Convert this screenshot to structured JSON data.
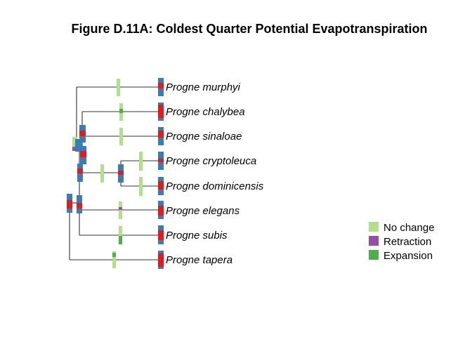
{
  "title": "Figure D.11A: Coldest Quarter Potential Evapotranspiration",
  "colors": {
    "no_change": "#b2df8a",
    "retraction": "#984ea3",
    "expansion": "#4daf4a",
    "node_blue": "#377eb8",
    "node_red": "#e41a1c"
  },
  "taxa": [
    "Progne murphyi",
    "Progne chalybea",
    "Progne sinaloae",
    "Progne cryptoleuca",
    "Progne dominicensis",
    "Progne elegans",
    "Progne subis",
    "Progne tapera"
  ],
  "legend": [
    {
      "label": "No change",
      "color": "#b2df8a"
    },
    {
      "label": "Retraction",
      "color": "#984ea3"
    },
    {
      "label": "Expansion",
      "color": "#4daf4a"
    }
  ]
}
